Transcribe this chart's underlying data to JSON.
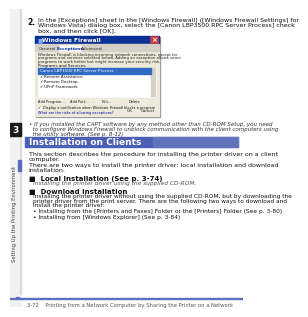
{
  "bg_color": "#ffffff",
  "sidebar_bg": "#f2f2f2",
  "tab_color": "#1a1a1a",
  "tab_text": "3",
  "sidebar_text": "Setting Up the Printing Environment",
  "sidebar_text_color": "#444444",
  "header_number": "2.",
  "header_text_line1": "In the [Exceptions] sheet in the [Windows Firewall] ([Windows Firewall Settings] for",
  "header_text_line2": "Windows Vista) dialog box, select the [Canon LBP3500 RPC Server Process] check",
  "header_text_line3": "box, and then click [OK].",
  "note_line1": "• If you installed the CAPT software by any method other than CD-ROM Setup, you need",
  "note_line2": "  to configure Windows Firewall to unblock communication with the client computers using",
  "note_line3": "  the utility software. (See p. 8-12)",
  "section_bg_left": "#4a5fb5",
  "section_bg_right": "#7080c0",
  "section_text": "Installation on Clients",
  "section_text_color": "#ffffff",
  "para1_line1": "This section describes the procedure for installing the printer driver on a client",
  "para1_line2": "computer.",
  "para2_line1": "There are two ways to install the printer driver: local installation and download",
  "para2_line2": "installation.",
  "bullet1_title": "■  Local Installation (See p. 3-74)",
  "bullet1_body": "Installing the printer driver using the supplied CD-ROM.",
  "bullet2_title": "■  Download Installation",
  "bullet2_body_line1": "Installing the printer driver without using the supplied CD-ROM, but by downloading the",
  "bullet2_body_line2": "printer driver from the print server. There are the following two ways to download and",
  "bullet2_body_line3": "install the printer driver:",
  "sub_bullet1": "• Installing from the [Printers and Faxes] Folder or the [Printers] Folder (See p. 3-80)",
  "sub_bullet2": "• Installing from [Windows Explorer] (See p. 3-84)",
  "footer_line_color": "#5c70c0",
  "footer_text": "3-72    Printing from a Network Computer by Sharing the Printer on a Network",
  "dialog_title_bar_color": "#0a3296",
  "dialog_title_bar_color2": "#1a52cc",
  "dialog_bg": "#ece9d8",
  "dialog_tab_inactive": "#d4d0c8",
  "dialog_selected_color": "#316AC5",
  "dialog_selected_text": "Canon LBP3500 RPC Server Process",
  "dialog_checkboxes": [
    "Remote Assistance",
    "Remote Desktop",
    "UPnP Framework"
  ],
  "body_text_color": "#111111",
  "note_text_color": "#333333",
  "small_text_color": "#555555",
  "blue_marker_color": "#5c6bc0"
}
